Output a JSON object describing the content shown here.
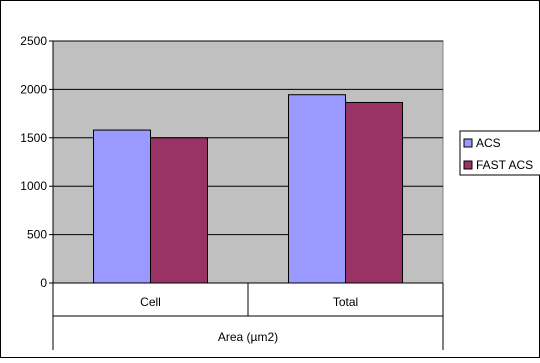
{
  "chart_data": {
    "type": "bar",
    "categories": [
      "Cell",
      "Total"
    ],
    "series": [
      {
        "name": "ACS",
        "values": [
          1580,
          1945
        ],
        "color": "#9999ff"
      },
      {
        "name": "FAST ACS",
        "values": [
          1500,
          1865
        ],
        "color": "#993366"
      }
    ],
    "xlabel": "Area (µm2)",
    "ylabel": "",
    "ylim": [
      0,
      2500
    ],
    "yticks": [
      0,
      500,
      1000,
      1500,
      2000,
      2500
    ],
    "grid": true,
    "plot_background": "#c0c0c0",
    "legend_position": "right"
  }
}
